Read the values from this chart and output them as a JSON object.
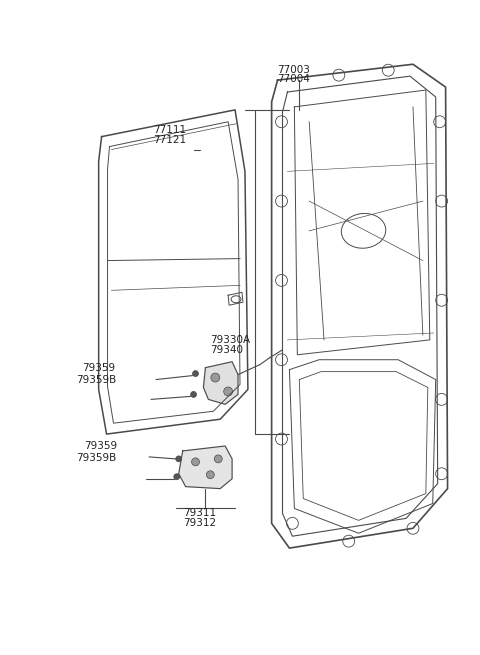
{
  "bg_color": "#ffffff",
  "line_color": "#4a4a4a",
  "fig_width": 4.8,
  "fig_height": 6.55,
  "dpi": 100,
  "label_77003": "77003",
  "label_77004": "77004",
  "label_77111": "77111",
  "label_77121": "77121",
  "label_79330A": "79330A",
  "label_79340": "79340",
  "label_79359_1": "79359",
  "label_79359B_1": "79359B",
  "label_79359_2": "79359",
  "label_79359B_2": "79359B",
  "label_79311": "79311",
  "label_79312": "79312",
  "font_size": 7.0
}
